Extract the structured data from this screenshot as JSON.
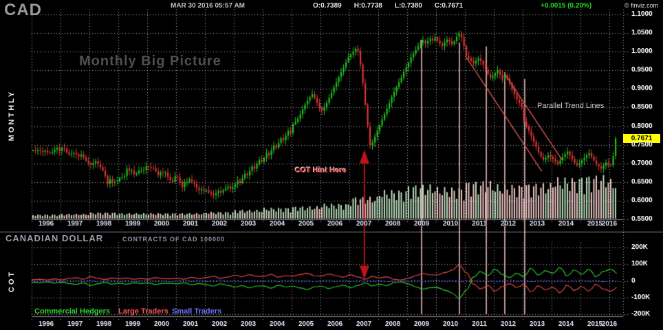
{
  "header": {
    "symbol": "CAD",
    "datetime": "MAR 30 2016 05:57 AM",
    "open": "O:0.7389",
    "high": "H:0.7738",
    "low": "L:0.7380",
    "close": "C:0.7671",
    "change": "+0.0015 (0.20%)",
    "copyright": "© finviz.com"
  },
  "labels": {
    "left_panel_top": "MONTHLY",
    "left_panel_bottom": "COT",
    "watermark": "Monthly Big Picture",
    "trend_annotation": "Parallel Trend Lines",
    "cot_hint": "COT Hint Here",
    "instrument": "CANADIAN DOLLAR",
    "contract": "CONTRACTS OF CAD 100000",
    "price_badge": "0.7671"
  },
  "legend": [
    {
      "label": "Commercial Hedgers",
      "color": "#35d435"
    },
    {
      "label": "Large Traders",
      "color": "#ff5555"
    },
    {
      "label": "Small Traders",
      "color": "#7070ff"
    }
  ],
  "axes": {
    "price_labels": [
      "1.1000",
      "1.0500",
      "1.0000",
      "0.9500",
      "0.9000",
      "0.8500",
      "0.8000",
      "0.7500",
      "0.7000",
      "0.6500",
      "0.6000",
      "0.5500"
    ],
    "cot_labels": [
      "200K",
      "100K",
      "0",
      "-100K",
      "-200K"
    ],
    "years": [
      "1996",
      "1997",
      "1998",
      "1999",
      "2000",
      "2001",
      "2002",
      "2003",
      "2004",
      "2005",
      "2006",
      "2007",
      "2008",
      "2009",
      "2010",
      "2011",
      "2012",
      "2013",
      "2014",
      "2015",
      "2016"
    ]
  },
  "colors": {
    "candle_up": "#1ec41e",
    "candle_down": "#e23535",
    "volume_up": "#b9dcb9",
    "volume_down": "#eec6c6",
    "grid": "rgba(255,255,255,0.72)",
    "vertical_marker": "#f2b8b8",
    "trend_line": "#e05555",
    "arrow": "#bb1515",
    "separator": "#8a8a8a",
    "cot_commercial": "#2fbf2f",
    "cot_large": "#e04545",
    "cot_small": "#4545e8"
  },
  "chart_data": {
    "type": "candlestick",
    "title": "CAD Monthly Big Picture",
    "price_panel": {
      "ylim": [
        0.55,
        1.1
      ],
      "x_start_year": 1996,
      "x_step_months": 1,
      "monthly_closes": [
        0.735,
        0.733,
        0.736,
        0.734,
        0.731,
        0.734,
        0.73,
        0.728,
        0.731,
        0.737,
        0.742,
        0.734,
        0.742,
        0.739,
        0.73,
        0.724,
        0.726,
        0.728,
        0.724,
        0.719,
        0.724,
        0.716,
        0.707,
        0.701,
        0.696,
        0.701,
        0.706,
        0.698,
        0.69,
        0.681,
        0.666,
        0.645,
        0.658,
        0.649,
        0.651,
        0.652,
        0.661,
        0.663,
        0.666,
        0.686,
        0.681,
        0.681,
        0.671,
        0.673,
        0.681,
        0.681,
        0.683,
        0.692,
        0.69,
        0.688,
        0.687,
        0.679,
        0.668,
        0.676,
        0.674,
        0.676,
        0.664,
        0.655,
        0.65,
        0.666,
        0.664,
        0.651,
        0.636,
        0.649,
        0.651,
        0.657,
        0.651,
        0.645,
        0.634,
        0.628,
        0.631,
        0.627,
        0.628,
        0.622,
        0.618,
        0.615,
        0.62,
        0.626,
        0.622,
        0.628,
        0.633,
        0.638,
        0.632,
        0.636,
        0.644,
        0.654,
        0.648,
        0.66,
        0.672,
        0.668,
        0.68,
        0.692,
        0.686,
        0.698,
        0.71,
        0.705,
        0.715,
        0.728,
        0.722,
        0.735,
        0.748,
        0.742,
        0.755,
        0.768,
        0.762,
        0.775,
        0.788,
        0.782,
        0.806,
        0.812,
        0.82,
        0.832,
        0.845,
        0.858,
        0.868,
        0.878,
        0.886,
        0.876,
        0.862,
        0.85,
        0.842,
        0.85,
        0.862,
        0.876,
        0.89,
        0.905,
        0.918,
        0.932,
        0.945,
        0.958,
        0.972,
        0.985,
        0.992,
        1.0,
        1.008,
        1.002,
        0.965,
        0.915,
        0.858,
        0.8,
        0.748,
        0.756,
        0.772,
        0.788,
        0.802,
        0.818,
        0.832,
        0.848,
        0.862,
        0.878,
        0.892,
        0.905,
        0.918,
        0.93,
        0.945,
        0.958,
        0.97,
        0.985,
        0.995,
        1.005,
        1.015,
        1.025,
        1.03,
        1.022,
        1.028,
        1.035,
        1.03,
        1.038,
        1.03,
        1.022,
        1.015,
        1.025,
        1.032,
        1.028,
        1.02,
        1.028,
        1.04,
        1.048,
        1.038,
        1.015,
        0.988,
        0.982,
        0.975,
        0.968,
        0.975,
        0.982,
        0.975,
        0.965,
        0.952,
        0.94,
        0.93,
        0.935,
        0.942,
        0.95,
        0.938,
        0.925,
        0.935,
        0.928,
        0.915,
        0.9,
        0.885,
        0.872,
        0.862,
        0.85,
        0.812,
        0.8,
        0.788,
        0.772,
        0.758,
        0.745,
        0.73,
        0.718,
        0.71,
        0.715,
        0.722,
        0.718,
        0.712,
        0.705,
        0.698,
        0.708,
        0.718,
        0.725,
        0.732,
        0.722,
        0.712,
        0.702,
        0.695,
        0.7,
        0.708,
        0.715,
        0.722,
        0.728,
        0.718,
        0.708,
        0.698,
        0.692,
        0.686,
        0.694,
        0.702,
        0.696,
        0.695,
        0.72,
        0.767
      ],
      "last_price": 0.7671
    },
    "volume_year_heights": [
      6,
      7,
      9,
      8,
      8,
      8,
      10,
      13,
      16,
      18,
      22,
      32,
      42,
      50,
      46,
      55,
      50,
      52,
      60,
      64,
      58
    ],
    "cot_panel": {
      "unit": "thousand contracts",
      "ylim": [
        -200,
        200
      ],
      "x_start_year": 1996,
      "x_step_years": 0.25,
      "series": [
        {
          "name": "Commercial Hedgers",
          "values": [
            -8,
            -12,
            -6,
            -14,
            -8,
            -16,
            -22,
            -12,
            -28,
            -18,
            -10,
            -20,
            -14,
            -20,
            -12,
            -16,
            -12,
            -22,
            -16,
            -14,
            -18,
            -12,
            -24,
            -16,
            -22,
            -32,
            -18,
            -26,
            -38,
            -28,
            -42,
            -32,
            -30,
            -44,
            -26,
            -36,
            -32,
            -42,
            -52,
            -36,
            -32,
            -46,
            -36,
            -26,
            -42,
            -28,
            -12,
            -30,
            -20,
            -28,
            -12,
            -6,
            -18,
            -35,
            -50,
            -42,
            -40,
            -55,
            -70,
            -105,
            -60,
            20,
            55,
            30,
            70,
            40,
            20,
            45,
            25,
            75,
            35,
            60,
            45,
            80,
            30,
            65,
            40,
            70,
            25,
            55,
            70,
            45
          ]
        },
        {
          "name": "Large Traders",
          "values": [
            7,
            10,
            5,
            12,
            6,
            14,
            19,
            10,
            25,
            15,
            8,
            17,
            12,
            17,
            10,
            14,
            10,
            19,
            14,
            12,
            15,
            10,
            21,
            14,
            19,
            28,
            15,
            22,
            34,
            24,
            37,
            28,
            26,
            39,
            22,
            31,
            28,
            37,
            46,
            31,
            28,
            41,
            31,
            22,
            37,
            24,
            10,
            26,
            17,
            24,
            10,
            5,
            15,
            30,
            44,
            37,
            35,
            48,
            62,
            94,
            52,
            -18,
            -48,
            -26,
            -62,
            -35,
            -17,
            -39,
            -21,
            -66,
            -30,
            -53,
            -39,
            -71,
            -26,
            -57,
            -34,
            -62,
            -21,
            -48,
            -62,
            -39
          ]
        },
        {
          "name": "Small Traders",
          "values": [
            1,
            3,
            -2,
            4,
            -3,
            2,
            5,
            -1,
            3,
            -4,
            1,
            3,
            -2,
            4,
            -3,
            2,
            5,
            -1,
            3,
            -4,
            1,
            3,
            -2,
            4,
            -3,
            2,
            5,
            -1,
            3,
            -4,
            1,
            3,
            -2,
            4,
            -3,
            2,
            5,
            -1,
            3,
            -4,
            1,
            3,
            -2,
            4,
            -3,
            2,
            5,
            -1,
            3,
            -4,
            1,
            3,
            -2,
            4,
            -3,
            2,
            5,
            -1,
            3,
            -4,
            1,
            3,
            -2,
            4,
            -3,
            2,
            5,
            -1,
            3,
            -4,
            1,
            3,
            -2,
            4,
            -3,
            2,
            5,
            -1,
            3,
            -4,
            1,
            3
          ]
        }
      ]
    },
    "annotations": {
      "trend_lines": [
        {
          "t1": 2011.05,
          "p1": 0.985,
          "t2": 2013.66,
          "p2": 0.679
        },
        {
          "t1": 2012.38,
          "p1": 0.94,
          "t2": 2014.36,
          "p2": 0.71
        }
      ],
      "vertical_markers": [
        {
          "t": 2009.5,
          "top_price": 1.032
        },
        {
          "t": 2010.81,
          "top_price": 1.025
        },
        {
          "t": 2011.74,
          "top_price": 1.014
        },
        {
          "t": 2012.38,
          "top_price": 0.945
        },
        {
          "t": 2013.07,
          "top_price": 0.927
        }
      ],
      "double_arrow": {
        "t": 2007.52,
        "price_tip": 0.737,
        "cot_tip": 8
      }
    }
  }
}
